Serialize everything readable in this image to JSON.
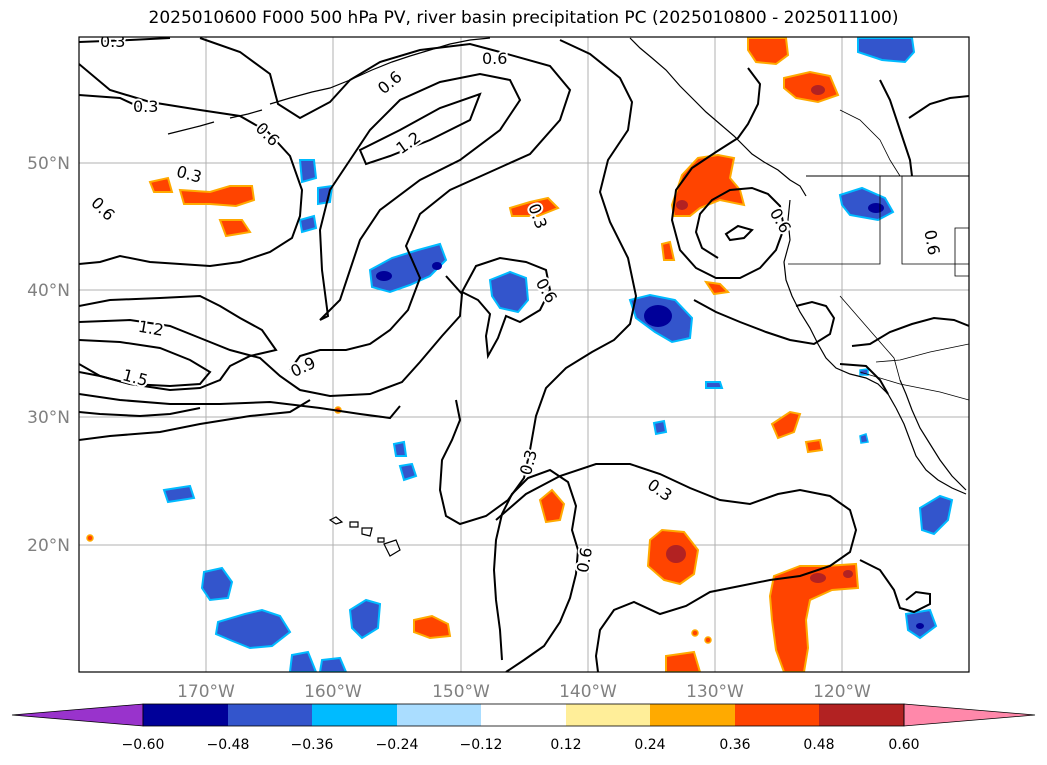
{
  "title": "2025010600 F000 500 hPa PV, river basin precipitation PC (2025010800 - 2025011100)",
  "map": {
    "lat_labels": [
      "50°N",
      "40°N",
      "30°N",
      "20°N"
    ],
    "lon_labels": [
      "170°W",
      "160°W",
      "150°W",
      "140°W",
      "130°W",
      "120°W"
    ]
  },
  "contour_labels": [
    "0.3",
    "0.6",
    "0.6",
    "0.3",
    "0.6",
    "1.2",
    "0.3",
    "0.6",
    "0.3",
    "0.6",
    "0.6",
    "0.6",
    "1.2",
    "1.5",
    "0.9",
    "0.6",
    "0.3",
    "0.3",
    "0.6"
  ],
  "colorbar": {
    "tick_labels": [
      "−0.60",
      "−0.48",
      "−0.36",
      "−0.24",
      "−0.12",
      "0.12",
      "0.24",
      "0.36",
      "0.48",
      "0.60"
    ],
    "colors": {
      "lt_neg060": "#9933cc",
      "neg060_neg048": "#000099",
      "neg048_neg036": "#3355cc",
      "neg036_neg024": "#00bbff",
      "neg024_neg012": "#aaddff",
      "neg012_012": "#ffffff",
      "p012_p024": "#ffee99",
      "p024_p036": "#ffaa00",
      "p036_p048": "#ff4400",
      "p048_p060": "#b22222",
      "gt_p060": "#ff88aa"
    }
  }
}
